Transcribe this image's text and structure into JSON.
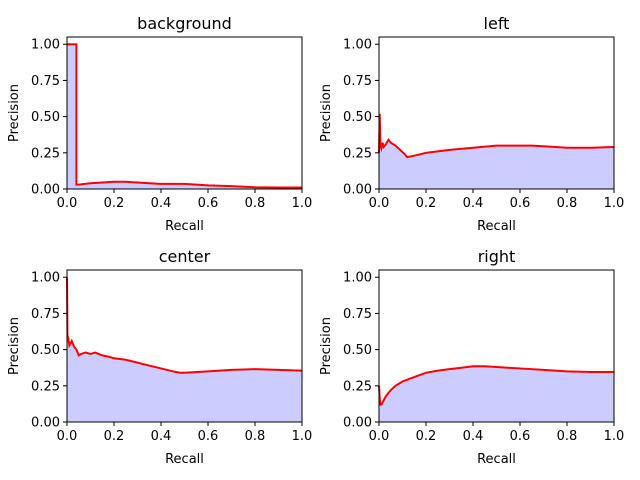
{
  "chart_data": [
    {
      "type": "area",
      "title": "background",
      "xlabel": "Recall",
      "ylabel": "Precision",
      "xlim": [
        0,
        1
      ],
      "ylim": [
        0,
        1.05
      ],
      "xticks": [
        "0.0",
        "0.2",
        "0.4",
        "0.6",
        "0.8",
        "1.0"
      ],
      "yticks": [
        "0.00",
        "0.25",
        "0.50",
        "0.75",
        "1.00"
      ],
      "line_color": "#ff0000",
      "fill_color": "#ccccff",
      "x": [
        0,
        0.001,
        0.04,
        0.04,
        0.05,
        0.1,
        0.15,
        0.2,
        0.25,
        0.3,
        0.35,
        0.4,
        0.45,
        0.5,
        0.55,
        0.6,
        0.7,
        0.8,
        0.9,
        1.0
      ],
      "y": [
        1.0,
        1.0,
        1.0,
        0.03,
        0.03,
        0.04,
        0.045,
        0.05,
        0.05,
        0.045,
        0.04,
        0.035,
        0.035,
        0.035,
        0.03,
        0.025,
        0.02,
        0.012,
        0.01,
        0.01
      ]
    },
    {
      "type": "area",
      "title": "left",
      "xlabel": "Recall",
      "ylabel": "Precision",
      "xlim": [
        0,
        1
      ],
      "ylim": [
        0,
        1.05
      ],
      "xticks": [
        "0.0",
        "0.2",
        "0.4",
        "0.6",
        "0.8",
        "1.0"
      ],
      "yticks": [
        "0.00",
        "0.25",
        "0.50",
        "0.75",
        "1.00"
      ],
      "line_color": "#ff0000",
      "fill_color": "#ccccff",
      "x": [
        0,
        0.003,
        0.006,
        0.01,
        0.015,
        0.02,
        0.03,
        0.04,
        0.05,
        0.07,
        0.09,
        0.11,
        0.12,
        0.15,
        0.2,
        0.25,
        0.3,
        0.4,
        0.5,
        0.6,
        0.65,
        0.7,
        0.8,
        0.9,
        1.0
      ],
      "y": [
        0.25,
        0.52,
        0.3,
        0.28,
        0.32,
        0.29,
        0.31,
        0.34,
        0.32,
        0.3,
        0.27,
        0.24,
        0.22,
        0.23,
        0.25,
        0.26,
        0.27,
        0.285,
        0.3,
        0.3,
        0.3,
        0.295,
        0.285,
        0.285,
        0.29
      ]
    },
    {
      "type": "area",
      "title": "center",
      "xlabel": "Recall",
      "ylabel": "Precision",
      "xlim": [
        0,
        1
      ],
      "ylim": [
        0,
        1.05
      ],
      "xticks": [
        "0.0",
        "0.2",
        "0.4",
        "0.6",
        "0.8",
        "1.0"
      ],
      "yticks": [
        "0.00",
        "0.25",
        "0.50",
        "0.75",
        "1.00"
      ],
      "line_color": "#ff0000",
      "fill_color": "#ccccff",
      "x": [
        0,
        0.002,
        0.005,
        0.01,
        0.02,
        0.03,
        0.04,
        0.05,
        0.06,
        0.08,
        0.1,
        0.12,
        0.15,
        0.18,
        0.2,
        0.25,
        0.3,
        0.35,
        0.4,
        0.45,
        0.48,
        0.5,
        0.6,
        0.7,
        0.8,
        0.9,
        1.0
      ],
      "y": [
        1.0,
        0.6,
        0.58,
        0.53,
        0.56,
        0.52,
        0.5,
        0.46,
        0.47,
        0.48,
        0.47,
        0.48,
        0.46,
        0.45,
        0.44,
        0.43,
        0.41,
        0.39,
        0.37,
        0.35,
        0.34,
        0.34,
        0.35,
        0.36,
        0.365,
        0.36,
        0.355
      ]
    },
    {
      "type": "area",
      "title": "right",
      "xlabel": "Recall",
      "ylabel": "Precision",
      "xlim": [
        0,
        1
      ],
      "ylim": [
        0,
        1.05
      ],
      "xticks": [
        "0.0",
        "0.2",
        "0.4",
        "0.6",
        "0.8",
        "1.0"
      ],
      "yticks": [
        "0.00",
        "0.25",
        "0.50",
        "0.75",
        "1.00"
      ],
      "line_color": "#ff0000",
      "fill_color": "#ccccff",
      "x": [
        0,
        0.005,
        0.01,
        0.02,
        0.03,
        0.05,
        0.07,
        0.1,
        0.15,
        0.2,
        0.25,
        0.3,
        0.35,
        0.4,
        0.45,
        0.5,
        0.55,
        0.6,
        0.7,
        0.8,
        0.9,
        1.0
      ],
      "y": [
        0.25,
        0.12,
        0.12,
        0.15,
        0.18,
        0.22,
        0.25,
        0.28,
        0.31,
        0.34,
        0.355,
        0.365,
        0.375,
        0.385,
        0.385,
        0.38,
        0.375,
        0.37,
        0.36,
        0.35,
        0.345,
        0.345
      ]
    }
  ]
}
